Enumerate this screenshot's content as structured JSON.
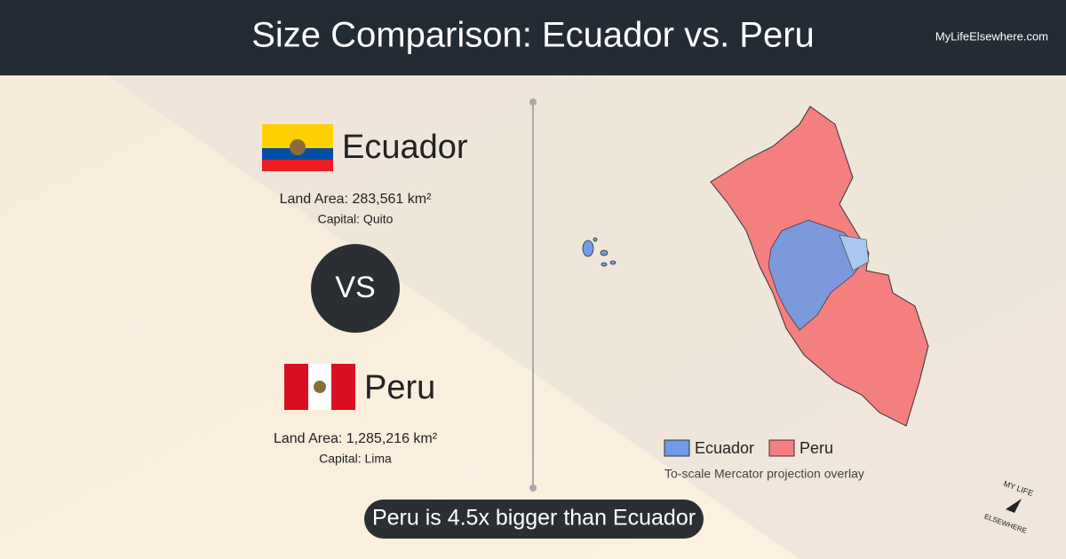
{
  "header": {
    "title": "Size Comparison: Ecuador vs. Peru",
    "site": "MyLifeElsewhere.com"
  },
  "country_1": {
    "name": "Ecuador",
    "land_area": "Land Area: 283,561 km²",
    "capital": "Capital: Quito"
  },
  "versus": "VS",
  "country_2": {
    "name": "Peru",
    "land_area": "Land Area: 1,285,216 km²",
    "capital": "Capital: Lima"
  },
  "legend": [
    "Ecuador",
    "Peru"
  ],
  "note": "To-scale Mercator projection overlay",
  "banner": "Peru is 4.5x bigger than Ecuador",
  "logo": {
    "line_1": "MY LIFE",
    "line_2": "ELSEWHERE"
  }
}
